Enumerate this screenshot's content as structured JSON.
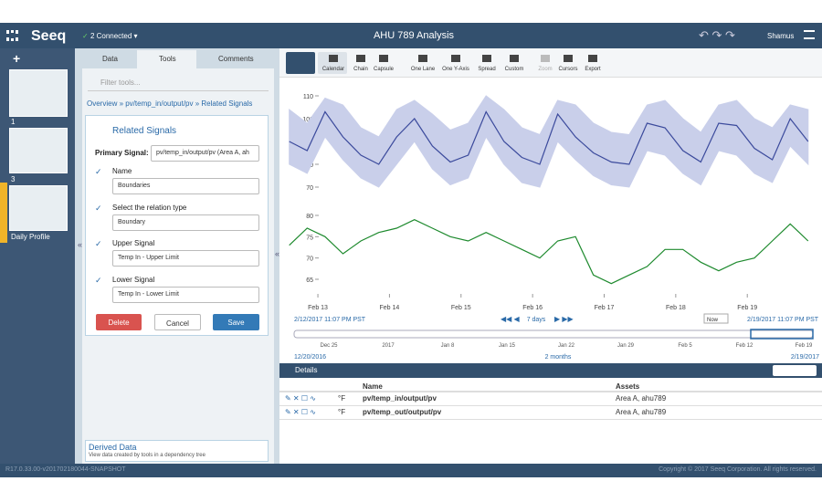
{
  "header": {
    "logo": "Seeq",
    "connected": "2 Connected",
    "title": "AHU 789 Analysis",
    "user": "Shamus"
  },
  "worksheets": [
    "1",
    "3",
    "Daily Profile"
  ],
  "tabs": [
    "Data",
    "Tools",
    "Comments"
  ],
  "filter_placeholder": "Filter tools...",
  "breadcrumb": "Overview » pv/temp_in/output/pv » Related Signals",
  "tool": {
    "title": "Related Signals",
    "primary_label": "Primary Signal:",
    "primary_value": "pv/temp_in/output/pv (Area A, ah",
    "steps": [
      {
        "label": "Name",
        "value": "Boundaries"
      },
      {
        "label": "Select the relation type",
        "value": "Boundary"
      },
      {
        "label": "Upper Signal",
        "value": "Temp In - Upper Limit"
      },
      {
        "label": "Lower Signal",
        "value": "Temp In - Lower Limit"
      }
    ],
    "buttons": [
      "Delete",
      "Cancel",
      "Save"
    ]
  },
  "derived": {
    "title": "Derived Data",
    "subtitle": "View data created by tools in a dependency tree"
  },
  "toolbar": [
    "Calendar",
    "Chain",
    "Capsule",
    "One Lane",
    "One Y-Axis",
    "Spread",
    "Custom",
    "Zoom",
    "Cursors",
    "Export"
  ],
  "chart_data": [
    {
      "type": "band",
      "ylim": [
        68,
        116
      ],
      "yticks": [
        110,
        100,
        90,
        80,
        70
      ],
      "xlim": [
        12.55,
        19.98
      ],
      "x": [
        12.6,
        12.85,
        13.1,
        13.35,
        13.6,
        13.85,
        14.1,
        14.35,
        14.6,
        14.85,
        15.1,
        15.35,
        15.6,
        15.85,
        16.1,
        16.35,
        16.6,
        16.85,
        17.1,
        17.35,
        17.6,
        17.85,
        18.1,
        18.35,
        18.6,
        18.85,
        19.1,
        19.35,
        19.6,
        19.85
      ],
      "series": [
        {
          "color": "#c9cfea",
          "values": [
            104,
            98,
            109,
            106,
            96,
            92,
            104,
            108,
            102,
            95,
            98,
            110,
            104,
            96,
            93,
            108,
            106,
            98,
            94,
            93,
            106,
            108,
            100,
            94,
            106,
            108,
            100,
            96,
            106,
            104
          ]
        },
        {
          "color": "#c9cfea",
          "values": [
            80,
            76,
            92,
            82,
            74,
            70,
            80,
            90,
            78,
            71,
            74,
            92,
            80,
            72,
            70,
            90,
            82,
            75,
            71,
            70,
            86,
            84,
            76,
            71,
            86,
            84,
            76,
            72,
            88,
            80
          ]
        },
        {
          "color": "#3b4a9c",
          "values": [
            90,
            86,
            103,
            92,
            84,
            80,
            92,
            100,
            88,
            81,
            84,
            103,
            90,
            83,
            80,
            102,
            92,
            85,
            81,
            80,
            98,
            96,
            86,
            81,
            98,
            97,
            87,
            82,
            100,
            90
          ]
        }
      ]
    },
    {
      "type": "line",
      "ylim": [
        62,
        84.5
      ],
      "yticks": [
        80,
        75,
        70,
        65
      ],
      "xlim": [
        12.55,
        19.98
      ],
      "xticks": [
        {
          "value": 13,
          "label": "Feb 13"
        },
        {
          "value": 14,
          "label": "Feb 14"
        },
        {
          "value": 15,
          "label": "Feb 15"
        },
        {
          "value": 16,
          "label": "Feb 16"
        },
        {
          "value": 17,
          "label": "Feb 17"
        },
        {
          "value": 18,
          "label": "Feb 18"
        },
        {
          "value": 19,
          "label": "Feb 19"
        }
      ],
      "x": [
        12.6,
        12.85,
        13.1,
        13.35,
        13.6,
        13.85,
        14.1,
        14.35,
        14.6,
        14.85,
        15.1,
        15.35,
        15.6,
        15.85,
        16.1,
        16.35,
        16.6,
        16.85,
        17.1,
        17.35,
        17.6,
        17.85,
        18.1,
        18.35,
        18.6,
        18.85,
        19.1,
        19.35,
        19.6,
        19.85
      ],
      "series": [
        {
          "color": "#1e8a2e",
          "values": [
            73,
            77,
            75,
            71,
            74,
            76,
            77,
            79,
            77,
            75,
            74,
            76,
            74,
            72,
            70,
            74,
            75,
            66,
            64,
            66,
            68,
            72,
            72,
            69,
            67,
            69,
            70,
            74,
            78,
            74
          ]
        }
      ]
    }
  ],
  "range": {
    "start": "2/12/2017 11:07 PM PST",
    "duration": "7 days",
    "now": "Now",
    "end": "2/19/2017 11:07 PM PST"
  },
  "timeline": {
    "labels": [
      "Dec 25",
      "2017",
      "Jan 8",
      "Jan 15",
      "Jan 22",
      "Jan 29",
      "Feb 5",
      "Feb 12",
      "Feb 19"
    ],
    "start": "12/20/2016",
    "span": "2 months",
    "end": "2/19/2017"
  },
  "details": {
    "title": "Details",
    "columns": [
      "Name",
      "Assets"
    ],
    "rows": [
      {
        "unit": "°F",
        "name": "pv/temp_in/output/pv",
        "asset": "Area A, ahu789"
      },
      {
        "unit": "°F",
        "name": "pv/temp_out/output/pv",
        "asset": "Area A, ahu789"
      }
    ]
  },
  "footer": {
    "version": "R17.0.33.00-v201702180044-SNAPSHOT",
    "copyright": "Copyright © 2017 Seeq Corporation. All rights reserved."
  }
}
